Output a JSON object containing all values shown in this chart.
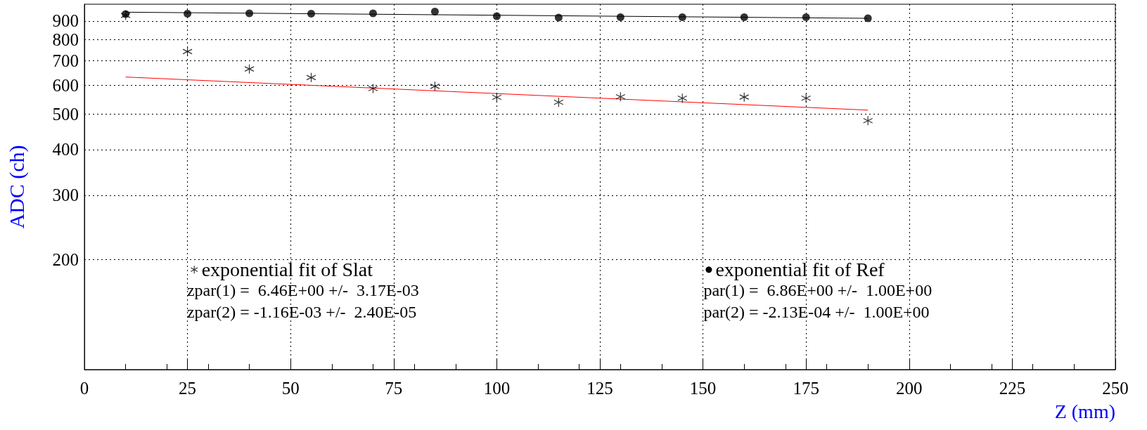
{
  "chart_data": {
    "type": "scatter",
    "xlabel": "Z (mm)",
    "ylabel": "ADC (ch)",
    "xlim": [
      0,
      250
    ],
    "xticks": [
      0,
      25,
      50,
      75,
      100,
      125,
      150,
      175,
      200,
      225,
      250
    ],
    "ylim": [
      100,
      1000
    ],
    "yticks": [
      200,
      300,
      400,
      500,
      600,
      700,
      800,
      900
    ],
    "log": "y",
    "grid": true,
    "legend": "bottom",
    "series": [
      {
        "name": "exponential fit of Slat",
        "marker": "cross",
        "color": "#000000",
        "x": [
          10,
          25,
          40,
          55,
          70,
          85,
          100,
          115,
          130,
          145,
          160,
          175,
          190
        ],
        "values": [
          932,
          742,
          665,
          630,
          588,
          596,
          556,
          539,
          558,
          553,
          557,
          553,
          480
        ]
      },
      {
        "name": "exponential fit of Ref",
        "marker": "circle",
        "color": "#000000",
        "x": [
          10,
          25,
          40,
          55,
          70,
          85,
          100,
          115,
          130,
          145,
          160,
          175,
          190
        ],
        "values": [
          940,
          942,
          944,
          942,
          944,
          955,
          927,
          919,
          921,
          921,
          921,
          921,
          915
        ]
      },
      {
        "type": "line",
        "marker": "none",
        "color": "#ff0000",
        "x": [
          10,
          190
        ],
        "values": [
          632,
          513
        ]
      },
      {
        "type": "line",
        "marker": "none",
        "color": "#000000",
        "x": [
          10,
          190
        ],
        "values": [
          951,
          915
        ]
      }
    ],
    "annotations": [
      "zpar(1) =  6.46E+00 +/-  3.17E-03",
      "zpar(2) = -1.16E-03 +/-  2.40E-05",
      "par(1) =  6.86E+00 +/-  1.00E+00",
      "par(2) = -2.13E-04 +/-  1.00E+00"
    ]
  }
}
